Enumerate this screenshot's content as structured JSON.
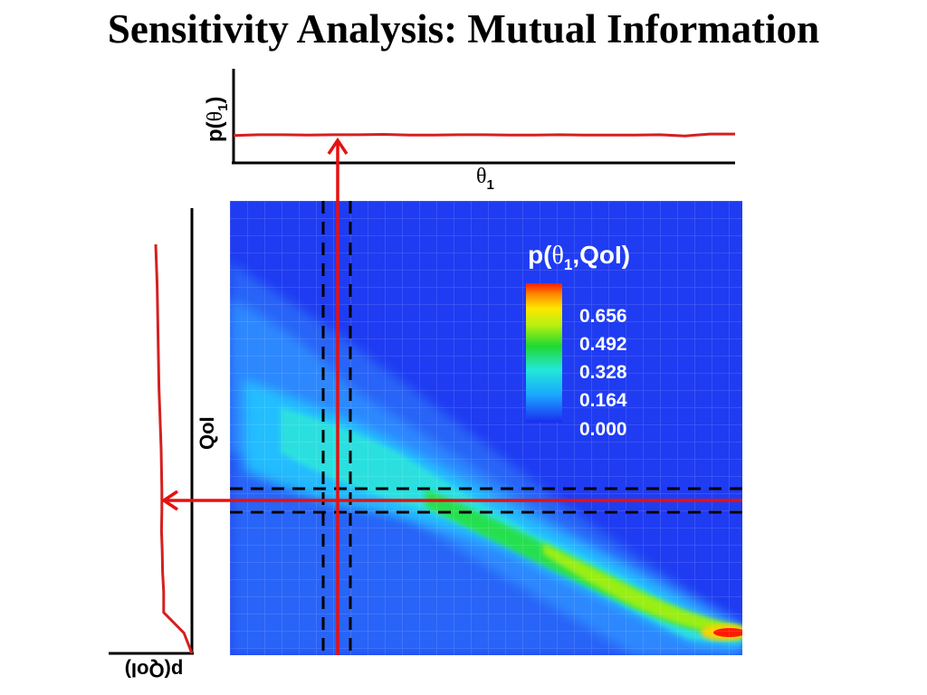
{
  "title": "Sensitivity Analysis: Mutual Information",
  "top_panel": {
    "ylabel": "p(θ1)",
    "xlabel": "θ1"
  },
  "left_panel": {
    "ylabel": "QoI",
    "xlabel_rotated": "p(QoI)"
  },
  "joint": {
    "label": "p(θ1,QoI)",
    "colorbar_ticks": [
      "0.656",
      "0.492",
      "0.328",
      "0.164",
      "0.000"
    ]
  },
  "colors": {
    "curve": "#d42020",
    "arrow": "#e81010",
    "field_base": "#1f3cf2",
    "dash": "#000000"
  },
  "chart_data": [
    {
      "type": "line",
      "description_source": "marginal p(theta1) curve (flat)",
      "title": "",
      "xlabel": "θ1",
      "ylabel": "p(θ1)",
      "x": [
        0,
        0.05,
        0.1,
        0.15,
        0.2,
        0.25,
        0.3,
        0.35,
        0.4,
        0.45,
        0.5,
        0.55,
        0.6,
        0.65,
        0.7,
        0.75,
        0.8,
        0.85,
        0.9,
        0.95,
        1.0
      ],
      "values": [
        0.72,
        0.74,
        0.74,
        0.73,
        0.74,
        0.74,
        0.75,
        0.73,
        0.73,
        0.74,
        0.74,
        0.73,
        0.73,
        0.74,
        0.73,
        0.73,
        0.73,
        0.74,
        0.71,
        0.76,
        0.76
      ],
      "ylim": [
        0,
        1
      ]
    },
    {
      "type": "line",
      "title": "",
      "xlabel": "p(QoI)",
      "ylabel": "QoI",
      "x": [
        0,
        0.05,
        0.1,
        0.15,
        0.2,
        0.25,
        0.3,
        0.35,
        0.4,
        0.45,
        0.5,
        0.55,
        0.6,
        0.65,
        0.7,
        0.75,
        0.8,
        0.85,
        0.9,
        0.95,
        1.0
      ],
      "values": [
        0.0,
        0.22,
        0.78,
        0.78,
        0.81,
        0.82,
        0.84,
        0.83,
        0.83,
        0.84,
        0.85,
        0.87,
        0.89,
        0.91,
        0.92,
        0.93,
        0.94,
        0.95,
        0.96,
        0.98,
        1.0
      ]
    },
    {
      "type": "heatmap",
      "title": "p(θ1,QoI)",
      "colorbar_ticks": [
        0.656,
        0.492,
        0.328,
        0.164,
        0.0
      ],
      "peak_value": 0.82
    }
  ]
}
